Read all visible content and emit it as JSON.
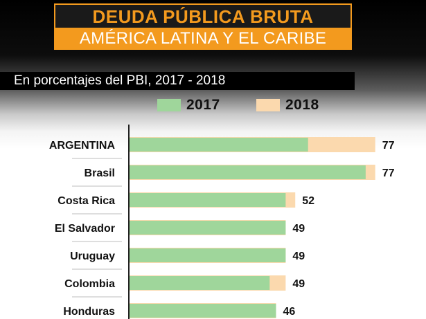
{
  "header": {
    "title": "DEUDA PÚBLICA BRUTA",
    "subtitle": "AMÉRICA LATINA Y EL CARIBE"
  },
  "description": "En porcentajes del PBI,  2017 - 2018",
  "colors": {
    "accent": "#f39a1e",
    "series_2017": "#9fd69b",
    "series_2018": "#fbd9ae"
  },
  "legend": [
    {
      "label": "2017",
      "color": "#9fd69b"
    },
    {
      "label": "2018",
      "color": "#fbd9ae"
    }
  ],
  "chart_data": {
    "type": "bar",
    "orientation": "horizontal",
    "title": "DEUDA PÚBLICA BRUTA - AMÉRICA LATINA Y EL CARIBE",
    "subtitle": "En porcentajes del PBI,  2017 - 2018",
    "categories": [
      "ARGENTINA",
      "Brasil",
      "Costa Rica",
      "El Salvador",
      "Uruguay",
      "Colombia",
      "Honduras"
    ],
    "series": [
      {
        "name": "2017",
        "values": [
          56,
          74,
          49,
          49,
          49,
          44,
          46
        ]
      },
      {
        "name": "2018",
        "values": [
          77,
          77,
          52,
          49,
          49,
          49,
          46
        ]
      }
    ],
    "data_labels": [
      "77",
      "77",
      "52",
      "49",
      "49",
      "49",
      "46"
    ],
    "xlim": [
      0,
      80
    ],
    "legend_position": "top",
    "grid": false
  }
}
